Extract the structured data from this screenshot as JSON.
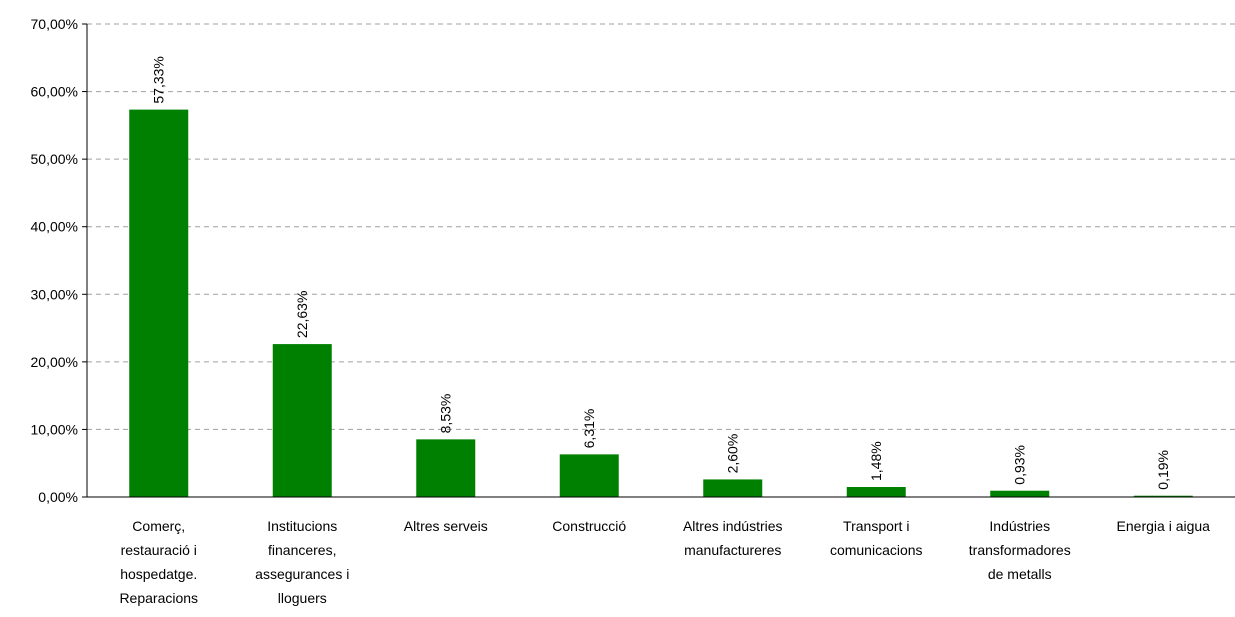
{
  "chart_data": {
    "type": "bar",
    "categories": [
      [
        "Comerç,",
        "restauració i",
        "hospedatge.",
        "Reparacions"
      ],
      [
        "Institucions",
        "financeres,",
        "assegurances i",
        "lloguers"
      ],
      [
        "Altres serveis"
      ],
      [
        "Construcció"
      ],
      [
        "Altres indústries",
        "manufactureres"
      ],
      [
        "Transport i",
        "comunicacions"
      ],
      [
        "Indústries",
        "transformadores",
        "de metalls"
      ],
      [
        "Energia i aigua"
      ]
    ],
    "values": [
      57.33,
      22.63,
      8.53,
      6.31,
      2.6,
      1.48,
      0.93,
      0.19
    ],
    "data_labels": [
      "57,33%",
      "22,63%",
      "8,53%",
      "6,31%",
      "2,60%",
      "1,48%",
      "0,93%",
      "0,19%"
    ],
    "y_ticks": [
      0,
      10,
      20,
      30,
      40,
      50,
      60,
      70
    ],
    "y_tick_labels": [
      "0,00%",
      "10,00%",
      "20,00%",
      "30,00%",
      "40,00%",
      "50,00%",
      "60,00%",
      "70,00%"
    ],
    "ylim": [
      0,
      70
    ],
    "grid": true,
    "legend": false,
    "bar_color": "#008000",
    "grid_color": "#a0a0a0"
  }
}
